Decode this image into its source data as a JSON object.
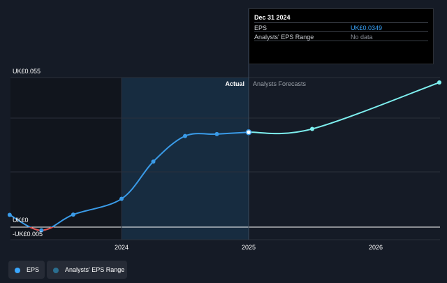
{
  "colors": {
    "background": "#151b26",
    "eps_line": "#3a9be8",
    "negative_line": "#e8514a",
    "forecast_line": "#7ef0f0",
    "range_legend": "#2b6e8f"
  },
  "tooltip": {
    "title": "Dec 31 2024",
    "rows": [
      {
        "label": "EPS",
        "value": "UK£0.0349"
      },
      {
        "label": "Analysts' EPS Range",
        "value": "No data"
      }
    ]
  },
  "regions": {
    "actual_label": "Actual",
    "forecast_label": "Analysts Forecasts"
  },
  "legend": {
    "eps_label": "EPS",
    "range_label": "Analysts' EPS Range"
  },
  "chart_data": {
    "type": "line",
    "y_tick_labels": [
      "UK£0.055",
      "UK£0",
      "-UK£0.005"
    ],
    "x_tick_labels": [
      "2024",
      "2025",
      "2026"
    ],
    "ylim": [
      -0.005,
      0.055
    ],
    "xlim": [
      2023.1,
      2026.5
    ],
    "grid": true,
    "series": [
      {
        "name": "EPS",
        "kind": "actual",
        "x": [
          2023.12,
          2023.37,
          2023.62,
          2024.0,
          2024.25,
          2024.5,
          2024.75,
          2025.0
        ],
        "y": [
          0.0045,
          -0.0012,
          0.0046,
          0.0104,
          0.0241,
          0.0335,
          0.0342,
          0.0349
        ]
      },
      {
        "name": "Analysts Forecasts",
        "kind": "forecast",
        "x": [
          2025.0,
          2025.5,
          2026.5
        ],
        "y": [
          0.0349,
          0.0361,
          0.0532
        ]
      }
    ]
  }
}
